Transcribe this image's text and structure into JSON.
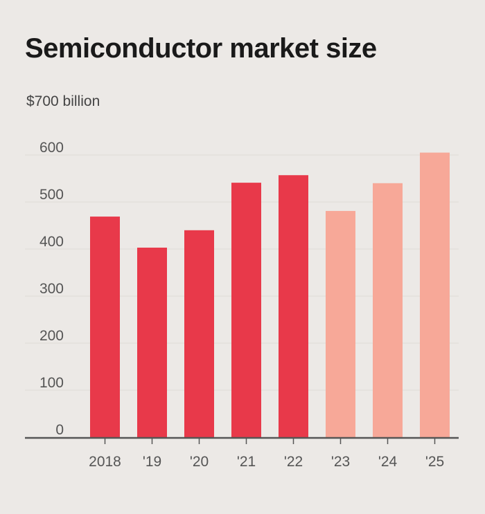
{
  "chart_data": {
    "type": "bar",
    "title": "Semiconductor market size",
    "y_unit_label": "$700 billion",
    "categories": [
      "2018",
      "'19",
      "'20",
      "'21",
      "'22",
      "'23",
      "'24",
      "'25"
    ],
    "values": [
      469,
      403,
      440,
      541,
      557,
      481,
      540,
      605
    ],
    "projected": [
      false,
      false,
      false,
      false,
      false,
      true,
      true,
      true
    ],
    "y_ticks": [
      "0",
      "100",
      "200",
      "300",
      "400",
      "500",
      "600"
    ],
    "y_tick_values": [
      0,
      100,
      200,
      300,
      400,
      500,
      600
    ],
    "ylim": [
      0,
      700
    ],
    "grid": true,
    "colors": {
      "actual": "#e8394a",
      "projected": "#f7a898",
      "axis": "#555555",
      "grid": "#dedad6"
    }
  }
}
